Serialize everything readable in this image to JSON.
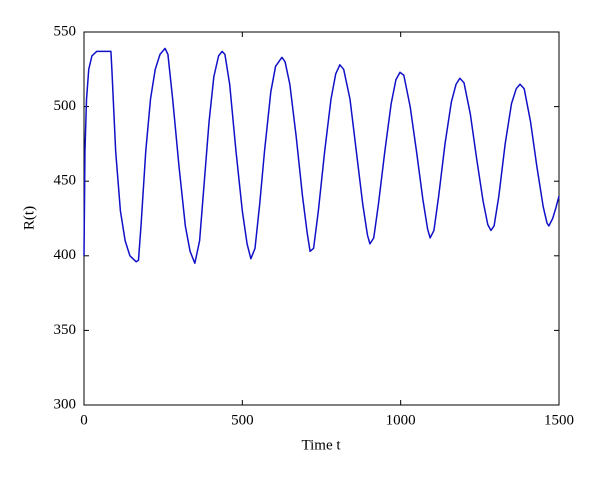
{
  "chart_data": {
    "type": "line",
    "xlabel": "Time t",
    "ylabel": "R(t)",
    "x": [
      0,
      3,
      8,
      15,
      25,
      40,
      60,
      85,
      88,
      100,
      115,
      130,
      145,
      165,
      172,
      180,
      195,
      210,
      225,
      240,
      256,
      265,
      280,
      300,
      320,
      335,
      350,
      365,
      380,
      395,
      410,
      425,
      436,
      445,
      460,
      480,
      500,
      515,
      527,
      540,
      555,
      570,
      590,
      605,
      625,
      635,
      650,
      670,
      690,
      705,
      714,
      725,
      740,
      760,
      780,
      795,
      808,
      820,
      840,
      860,
      880,
      895,
      903,
      915,
      930,
      950,
      970,
      985,
      998,
      1010,
      1030,
      1050,
      1070,
      1085,
      1093,
      1105,
      1120,
      1140,
      1160,
      1175,
      1187,
      1200,
      1220,
      1240,
      1260,
      1275,
      1285,
      1295,
      1310,
      1330,
      1350,
      1365,
      1377,
      1390,
      1410,
      1430,
      1450,
      1462,
      1468,
      1480,
      1490,
      1500
    ],
    "series": [
      {
        "color": "#1010c8",
        "values": [
          400,
          470,
          505,
          525,
          534,
          537,
          537,
          537,
          525,
          470,
          430,
          410,
          400,
          396,
          397,
          420,
          470,
          505,
          525,
          535,
          539,
          535,
          505,
          460,
          420,
          403,
          395,
          410,
          450,
          490,
          520,
          534,
          537,
          535,
          515,
          470,
          430,
          408,
          398,
          405,
          435,
          470,
          510,
          527,
          533,
          530,
          515,
          480,
          440,
          415,
          403,
          405,
          430,
          470,
          505,
          522,
          528,
          525,
          505,
          470,
          435,
          414,
          408,
          412,
          435,
          470,
          502,
          518,
          523,
          521,
          500,
          470,
          438,
          418,
          412,
          417,
          440,
          475,
          503,
          515,
          519,
          516,
          495,
          465,
          437,
          421,
          417,
          420,
          440,
          475,
          502,
          512,
          515,
          512,
          490,
          460,
          433,
          422,
          420,
          425,
          432,
          440
        ]
      }
    ],
    "xlim": [
      0,
      1500
    ],
    "ylim": [
      300,
      550
    ],
    "xticks": [
      0,
      500,
      1000,
      1500
    ],
    "yticks": [
      300,
      350,
      400,
      450,
      500,
      550
    ],
    "grid": false
  }
}
